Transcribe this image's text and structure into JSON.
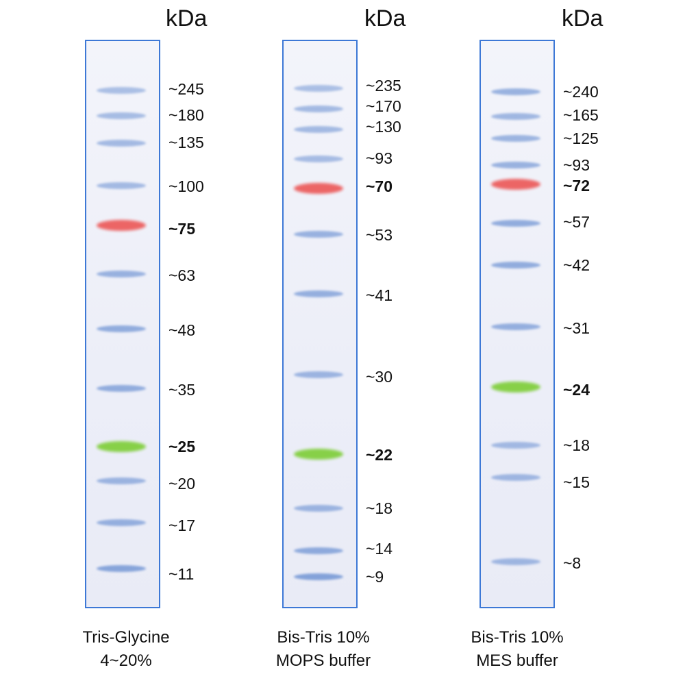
{
  "colors": {
    "lane_border": "#3d78d6",
    "blue_band": "#7f9fd8",
    "red_band": "#ec5e5e",
    "green_band": "#82cf3f"
  },
  "ladders": [
    {
      "unit": "kDa",
      "caption": [
        "Tris-Glycine",
        "4~20%"
      ],
      "bands": [
        {
          "label": "~245",
          "color": "blue",
          "intensity": 0.45
        },
        {
          "label": "~180",
          "color": "blue",
          "intensity": 0.5
        },
        {
          "label": "~135",
          "color": "blue",
          "intensity": 0.55
        },
        {
          "label": "~100",
          "color": "blue",
          "intensity": 0.55
        },
        {
          "label": "~75",
          "color": "red",
          "bold": true,
          "intensity": 1.0
        },
        {
          "label": "~63",
          "color": "blue",
          "intensity": 0.7
        },
        {
          "label": "~48",
          "color": "blue",
          "intensity": 0.8
        },
        {
          "label": "~35",
          "color": "blue",
          "intensity": 0.8
        },
        {
          "label": "~25",
          "color": "green",
          "bold": true,
          "intensity": 1.0
        },
        {
          "label": "~20",
          "color": "blue",
          "intensity": 0.65
        },
        {
          "label": "~17",
          "color": "blue",
          "intensity": 0.75
        },
        {
          "label": "~11",
          "color": "blue",
          "intensity": 0.95
        }
      ]
    },
    {
      "unit": "kDa",
      "caption": [
        "Bis-Tris 10%",
        "MOPS buffer"
      ],
      "bands": [
        {
          "label": "~235",
          "color": "blue",
          "intensity": 0.45
        },
        {
          "label": "~170",
          "color": "blue",
          "intensity": 0.55
        },
        {
          "label": "~130",
          "color": "blue",
          "intensity": 0.55
        },
        {
          "label": "~93",
          "color": "blue",
          "intensity": 0.5
        },
        {
          "label": "~70",
          "color": "red",
          "bold": true,
          "intensity": 1.0
        },
        {
          "label": "~53",
          "color": "blue",
          "intensity": 0.7
        },
        {
          "label": "~41",
          "color": "blue",
          "intensity": 0.75
        },
        {
          "label": "~30",
          "color": "blue",
          "intensity": 0.65
        },
        {
          "label": "~22",
          "color": "green",
          "bold": true,
          "intensity": 1.0
        },
        {
          "label": "~18",
          "color": "blue",
          "intensity": 0.65
        },
        {
          "label": "~14",
          "color": "blue",
          "intensity": 0.85
        },
        {
          "label": "~9",
          "color": "blue",
          "intensity": 1.0
        }
      ]
    },
    {
      "unit": "kDa",
      "caption": [
        "Bis-Tris 10%",
        "MES buffer"
      ],
      "bands": [
        {
          "label": "~240",
          "color": "blue",
          "intensity": 0.7
        },
        {
          "label": "~165",
          "color": "blue",
          "intensity": 0.6
        },
        {
          "label": "~125",
          "color": "blue",
          "intensity": 0.65
        },
        {
          "label": "~93",
          "color": "blue",
          "intensity": 0.7
        },
        {
          "label": "~72",
          "color": "red",
          "bold": true,
          "intensity": 1.0
        },
        {
          "label": "~57",
          "color": "blue",
          "intensity": 0.8
        },
        {
          "label": "~42",
          "color": "blue",
          "intensity": 0.8
        },
        {
          "label": "~31",
          "color": "blue",
          "intensity": 0.75
        },
        {
          "label": "~24",
          "color": "green",
          "bold": true,
          "intensity": 1.0
        },
        {
          "label": "~18",
          "color": "blue",
          "intensity": 0.55
        },
        {
          "label": "~15",
          "color": "blue",
          "intensity": 0.6
        },
        {
          "label": "~8",
          "color": "blue",
          "intensity": 0.6
        }
      ]
    }
  ]
}
